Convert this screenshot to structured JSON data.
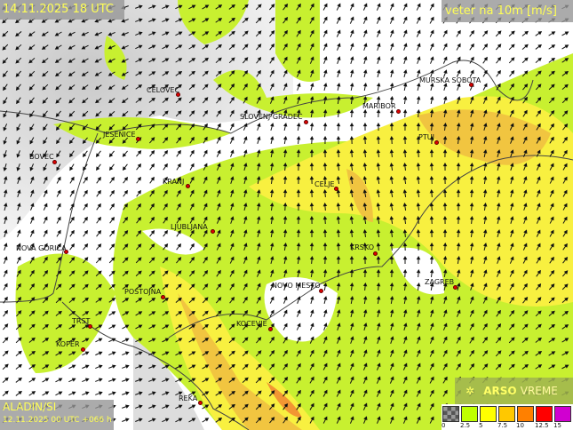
{
  "header": {
    "timestamp": "14.11.2025 18 UTC",
    "parameter": "veter na 10m [m/s]"
  },
  "model": {
    "name": "ALADIN/SI",
    "run": "12.11.2025 00 UTC +066 h"
  },
  "logo": {
    "brand": "ARSO",
    "product": "VREME",
    "icon": "arso-logo-icon"
  },
  "legend": {
    "colors": [
      "#808080",
      "#c0ff00",
      "#ffff00",
      "#ffc800",
      "#ff8000",
      "#ff0000",
      "#d000d0"
    ],
    "labels": [
      "0",
      "2.5",
      "5",
      "7.5",
      "10",
      "12.5",
      "15"
    ]
  },
  "cities": [
    "CELOVEC",
    "SLOVENJ GRADEC",
    "MARIBOR",
    "MURSKA SOBOTA",
    "PTUJ",
    "JESENICE",
    "BOVEC",
    "KRANJ",
    "CELJE",
    "LJUBLJANA",
    "NOVA GORICA",
    "KRSKO",
    "ZAGREB",
    "POSTOJNA",
    "NOVO MESTO",
    "TRST",
    "KOCEVJE",
    "KOPER",
    "REKA"
  ]
}
